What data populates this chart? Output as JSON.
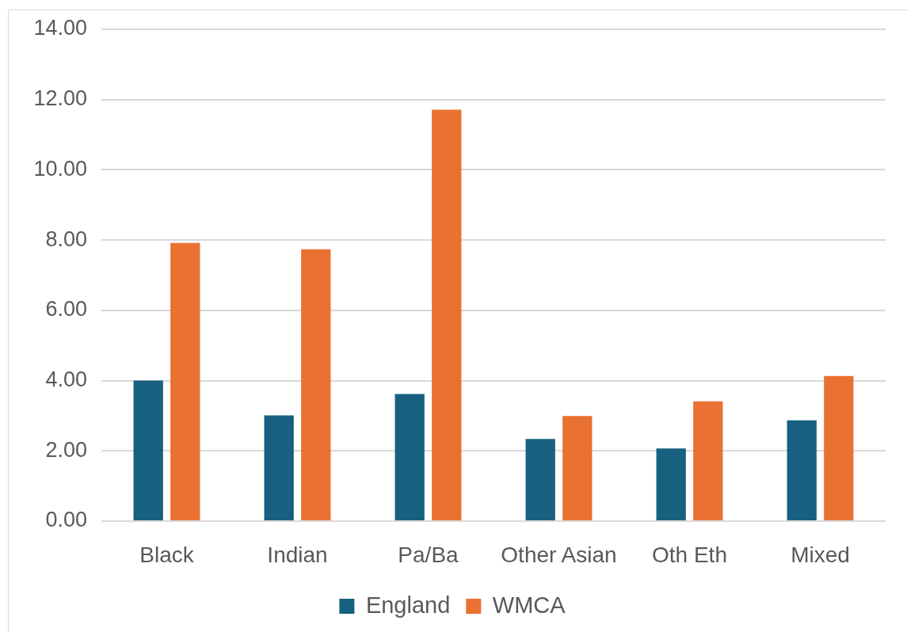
{
  "chart_data": {
    "type": "bar",
    "categories": [
      "Black",
      "Indian",
      "Pa/Ba",
      "Other Asian",
      "Oth Eth",
      "Mixed"
    ],
    "series": [
      {
        "name": "England",
        "color": "#17607f",
        "values": [
          4.0,
          3.01,
          3.62,
          2.34,
          2.07,
          2.87
        ]
      },
      {
        "name": "WMCA",
        "color": "#e97132",
        "values": [
          7.92,
          7.74,
          11.71,
          2.99,
          3.41,
          4.13
        ]
      }
    ],
    "ylim": [
      0,
      14
    ],
    "yticks": [
      {
        "value": 0,
        "label": "0.00"
      },
      {
        "value": 2,
        "label": "2.00"
      },
      {
        "value": 4,
        "label": "4.00"
      },
      {
        "value": 6,
        "label": "6.00"
      },
      {
        "value": 8,
        "label": "8.00"
      },
      {
        "value": 10,
        "label": "10.00"
      },
      {
        "value": 12,
        "label": "12.00"
      },
      {
        "value": 14,
        "label": "14.00"
      }
    ],
    "grid": "y",
    "legend": "bottom"
  }
}
